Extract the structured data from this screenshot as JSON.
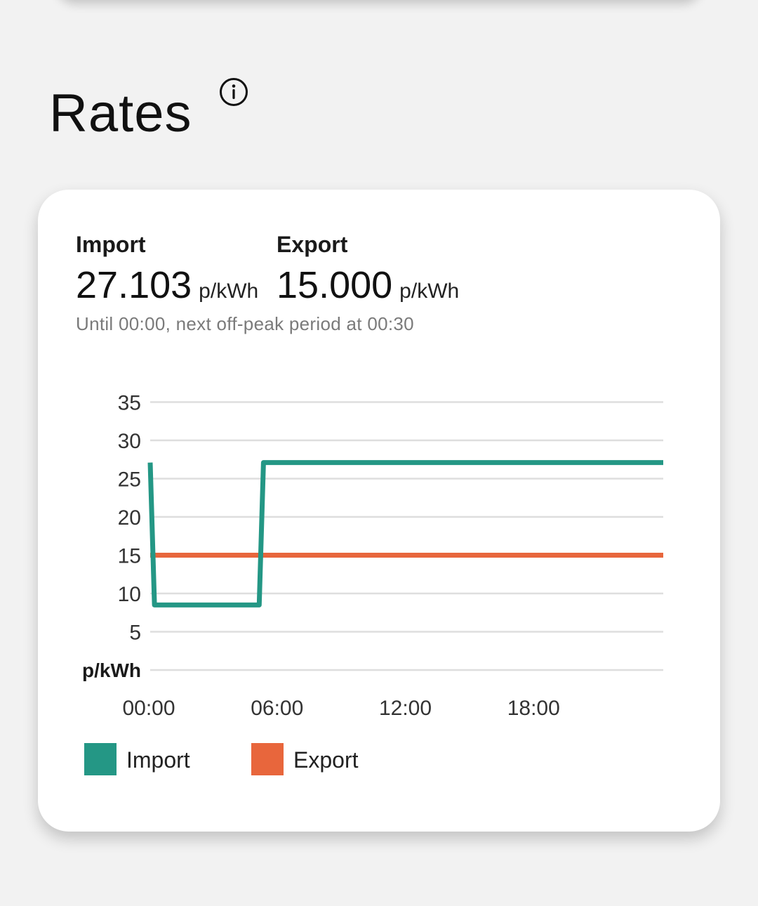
{
  "section": {
    "title": "Rates",
    "info_icon": "info-circle-icon"
  },
  "rates": {
    "import": {
      "label": "Import",
      "value": "27.103",
      "unit": "p/kWh"
    },
    "export": {
      "label": "Export",
      "value": "15.000",
      "unit": "p/kWh"
    },
    "note": "Until 00:00, next off-peak period at 00:30"
  },
  "colors": {
    "import": "#249785",
    "export": "#e8663c",
    "grid": "#dedede"
  },
  "chart_data": {
    "type": "line",
    "ylabel": "p/kWh",
    "y_ticks": [
      "35",
      "30",
      "25",
      "20",
      "15",
      "10",
      "5"
    ],
    "x_ticks": [
      "00:00",
      "06:00",
      "12:00",
      "18:00"
    ],
    "ylim": [
      0,
      35
    ],
    "xlim": [
      0,
      24
    ],
    "series": [
      {
        "name": "Import",
        "x": [
          0,
          0.2,
          5.1,
          5.3,
          24
        ],
        "y": [
          27.1,
          8.5,
          8.5,
          27.1,
          27.1
        ]
      },
      {
        "name": "Export",
        "x": [
          0,
          24
        ],
        "y": [
          15,
          15
        ]
      }
    ]
  }
}
